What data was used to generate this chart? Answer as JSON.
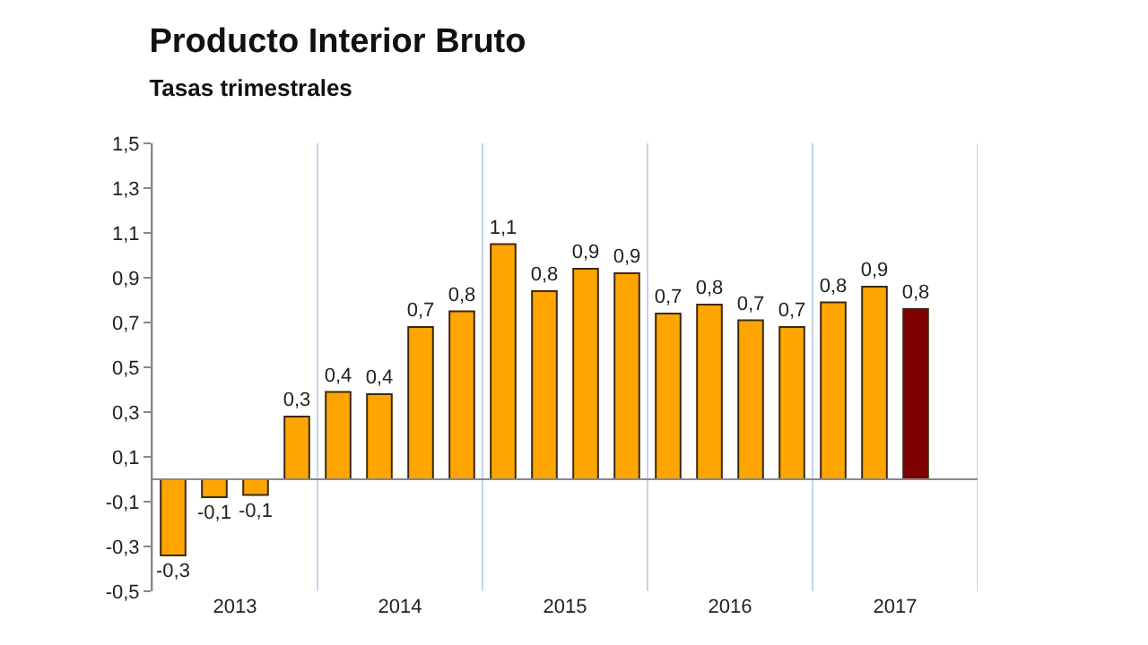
{
  "chart_data": {
    "type": "bar",
    "title": "Producto Interior Bruto",
    "subtitle": "Tasas trimestrales",
    "categories": [
      null,
      "2013",
      null,
      null,
      null,
      "2014",
      null,
      null,
      null,
      "2015",
      null,
      null,
      null,
      "2016",
      null,
      null,
      null,
      "2017",
      null,
      null
    ],
    "values": [
      -0.34,
      -0.08,
      -0.07,
      0.28,
      0.39,
      0.38,
      0.68,
      0.75,
      1.05,
      0.84,
      0.94,
      0.92,
      0.74,
      0.78,
      0.71,
      0.68,
      0.79,
      0.86,
      0.76,
      null
    ],
    "value_labels": [
      "-0,3",
      "-0,1",
      "-0,1",
      "0,3",
      "0,4",
      "0,4",
      "0,7",
      "0,8",
      "1,1",
      "0,8",
      "0,9",
      "0,9",
      "0,7",
      "0,8",
      "0,7",
      "0,7",
      "0,8",
      "0,9",
      "0,8",
      null
    ],
    "colors": [
      "#ffa500",
      "#ffa500",
      "#ffa500",
      "#ffa500",
      "#ffa500",
      "#ffa500",
      "#ffa500",
      "#ffa500",
      "#ffa500",
      "#ffa500",
      "#ffa500",
      "#ffa500",
      "#ffa500",
      "#ffa500",
      "#ffa500",
      "#ffa500",
      "#ffa500",
      "#ffa500",
      "#7f0000",
      "#ffa500"
    ],
    "ylim": [
      -0.5,
      1.5
    ],
    "yticks": [
      {
        "value": -0.5,
        "label": "-0,5"
      },
      {
        "value": -0.3,
        "label": "-0,3"
      },
      {
        "value": -0.1,
        "label": "-0,1"
      },
      {
        "value": 0.1,
        "label": "0,1"
      },
      {
        "value": 0.3,
        "label": "0,3"
      },
      {
        "value": 0.5,
        "label": "0,5"
      },
      {
        "value": 0.7,
        "label": "0,7"
      },
      {
        "value": 0.9,
        "label": "0,9"
      },
      {
        "value": 1.1,
        "label": "1,1"
      },
      {
        "value": 1.3,
        "label": "1,3"
      },
      {
        "value": 1.5,
        "label": "1,5"
      }
    ],
    "grid": "x"
  }
}
